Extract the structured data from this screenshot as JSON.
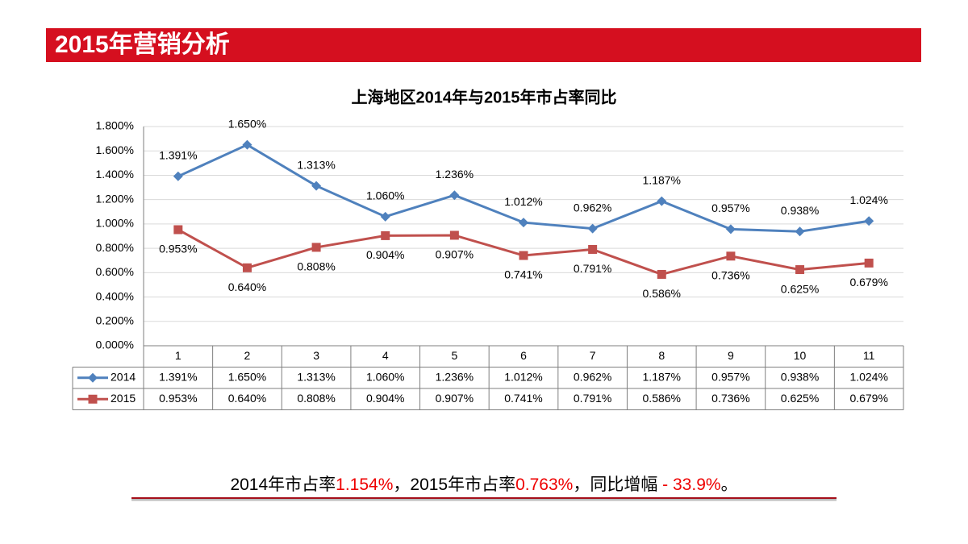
{
  "header": {
    "title": "2015年营销分析"
  },
  "chart_data": {
    "type": "line",
    "title": "上海地区2014年与2015年市占率同比",
    "categories": [
      "1",
      "2",
      "3",
      "4",
      "5",
      "6",
      "7",
      "8",
      "9",
      "10",
      "11"
    ],
    "series": [
      {
        "name": "2014",
        "color": "#4f81bd",
        "marker": "diamond",
        "values": [
          1.391,
          1.65,
          1.313,
          1.06,
          1.236,
          1.012,
          0.962,
          1.187,
          0.957,
          0.938,
          1.024
        ],
        "value_labels": [
          "1.391%",
          "1.650%",
          "1.313%",
          "1.060%",
          "1.236%",
          "1.012%",
          "0.962%",
          "1.187%",
          "0.957%",
          "0.938%",
          "1.024%"
        ]
      },
      {
        "name": "2015",
        "color": "#c0504d",
        "marker": "square",
        "values": [
          0.953,
          0.64,
          0.808,
          0.904,
          0.907,
          0.741,
          0.791,
          0.586,
          0.736,
          0.625,
          0.679
        ],
        "value_labels": [
          "0.953%",
          "0.640%",
          "0.808%",
          "0.904%",
          "0.907%",
          "0.741%",
          "0.791%",
          "0.586%",
          "0.736%",
          "0.625%",
          "0.679%"
        ]
      }
    ],
    "ylim": [
      0,
      1.8
    ],
    "yticks": [
      {
        "value": 0,
        "label": "0.000%"
      },
      {
        "value": 0.2,
        "label": "0.200%"
      },
      {
        "value": 0.4,
        "label": "0.400%"
      },
      {
        "value": 0.6,
        "label": "0.600%"
      },
      {
        "value": 0.8,
        "label": "0.800%"
      },
      {
        "value": 1.0,
        "label": "1.000%"
      },
      {
        "value": 1.2,
        "label": "1.200%"
      },
      {
        "value": 1.4,
        "label": "1.400%"
      },
      {
        "value": 1.6,
        "label": "1.600%"
      },
      {
        "value": 1.8,
        "label": "1.800%"
      }
    ],
    "grid": true,
    "data_table": true
  },
  "summary": {
    "text1": "2014年市占率",
    "value1": "1.154%",
    "text2": "，2015年市占率",
    "value2": "0.763%",
    "text3": "，同比增幅",
    "value3": " - 33.9%",
    "text4": "。"
  }
}
